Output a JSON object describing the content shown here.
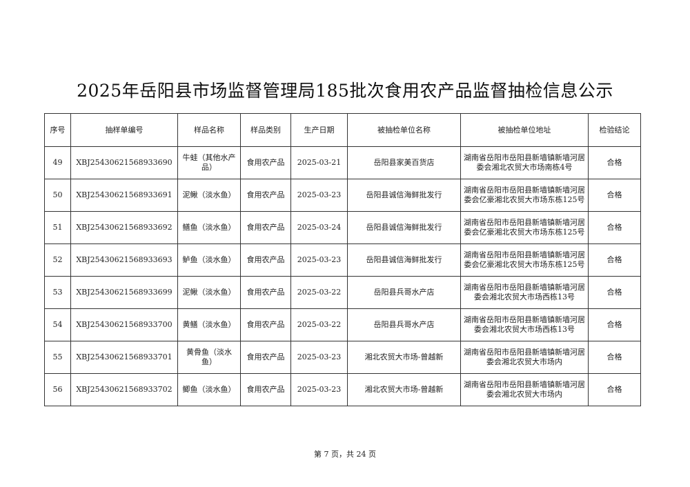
{
  "title": "2025年岳阳县市场监督管理局185批次食用农产品监督抽检信息公示",
  "table": {
    "headers": [
      "序号",
      "抽样单编号",
      "样品名称",
      "样品类别",
      "生产日期",
      "被抽检单位名称",
      "被抽检单位地址",
      "检验结论"
    ],
    "rows": [
      [
        "49",
        "XBJ25430621568933690",
        "牛蛙（其他水产品）",
        "食用农产品",
        "2025-03-21",
        "岳阳县家美百货店",
        "湖南省岳阳市岳阳县新墙镇新墙河居委会湘北农贸大市场南栋4号",
        "合格"
      ],
      [
        "50",
        "XBJ25430621568933691",
        "泥鳅（淡水鱼）",
        "食用农产品",
        "2025-03-23",
        "岳阳县诚信海鲜批发行",
        "湖南省岳阳市岳阳县新墙镇新墙河居委会亿豪湘北农贸大市场东栋125号",
        "合格"
      ],
      [
        "51",
        "XBJ25430621568933692",
        "鳝鱼（淡水鱼）",
        "食用农产品",
        "2025-03-24",
        "岳阳县诚信海鲜批发行",
        "湖南省岳阳市岳阳县新墙镇新墙河居委会亿豪湘北农贸大市场东栋125号",
        "合格"
      ],
      [
        "52",
        "XBJ25430621568933693",
        "鲈鱼（淡水鱼）",
        "食用农产品",
        "2025-03-23",
        "岳阳县诚信海鲜批发行",
        "湖南省岳阳市岳阳县新墙镇新墙河居委会亿豪湘北农贸大市场东栋125号",
        "合格"
      ],
      [
        "53",
        "XBJ25430621568933699",
        "泥鳅（淡水鱼）",
        "食用农产品",
        "2025-03-22",
        "岳阳县兵哥水产店",
        "湖南省岳阳市岳阳县新墙镇新墙河居委会湘北农贸大市场西栋13号",
        "合格"
      ],
      [
        "54",
        "XBJ25430621568933700",
        "黄鳝（淡水鱼）",
        "食用农产品",
        "2025-03-22",
        "岳阳县兵哥水产店",
        "湖南省岳阳市岳阳县新墙镇新墙河居委会湘北农贸大市场西栋13号",
        "合格"
      ],
      [
        "55",
        "XBJ25430621568933701",
        "黄骨鱼（淡水鱼）",
        "食用农产品",
        "2025-03-23",
        "湘北农贸大市场-曾越新",
        "湖南省岳阳市岳阳县新墙镇新墙河居委会湘北农贸大市场内",
        "合格"
      ],
      [
        "56",
        "XBJ25430621568933702",
        "鲫鱼（淡水鱼）",
        "食用农产品",
        "2025-03-23",
        "湘北农贸大市场-曾越新",
        "湖南省岳阳市岳阳县新墙镇新墙河居委会湘北农贸大市场内",
        "合格"
      ]
    ]
  },
  "footer": "第 7 页，共 24 页"
}
